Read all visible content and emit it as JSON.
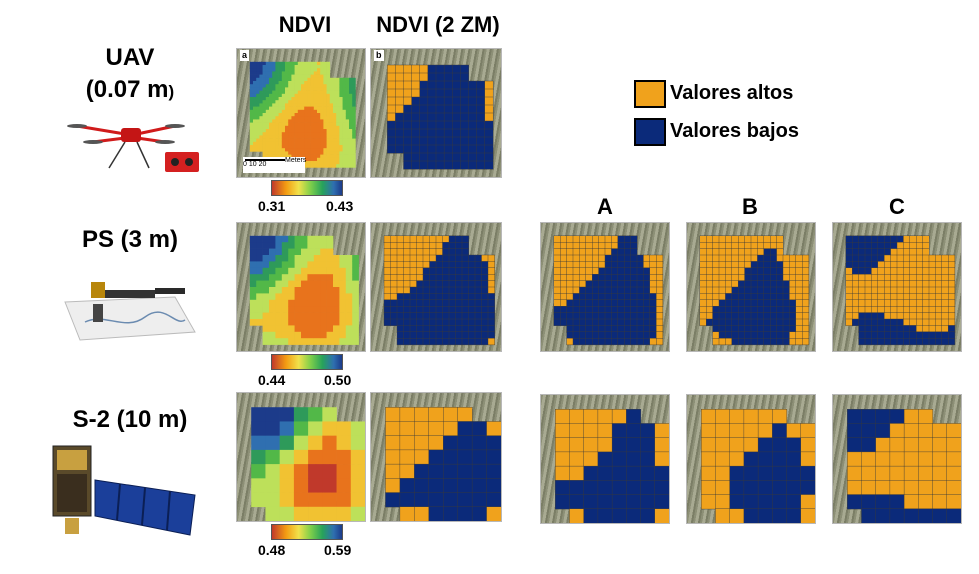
{
  "headers": {
    "ndvi": "NDVI",
    "ndvi_zm": "NDVI (2 ZM)",
    "a": "A",
    "b": "B",
    "c": "C"
  },
  "rows": {
    "uav": {
      "line1": "UAV",
      "line2": "(0.07 m",
      "line2b": ")",
      "sensor_icon": "drone-icon"
    },
    "ps": {
      "label": "PS (3 m)",
      "sensor_icon": "planetscope-satellite-icon"
    },
    "s2": {
      "label": "S-2 (10 m)",
      "sensor_icon": "sentinel-2-satellite-icon"
    }
  },
  "colorbars": {
    "uav": {
      "min": "0.31",
      "max": "0.43"
    },
    "ps": {
      "min": "0.44",
      "max": "0.50"
    },
    "s2": {
      "min": "0.48",
      "max": "0.59"
    }
  },
  "legend": {
    "high": {
      "label": "Valores altos",
      "color": "#f0a21c"
    },
    "low": {
      "label": "Valores bajos",
      "color": "#0b2a7a"
    }
  },
  "panel_letters": {
    "a": "a",
    "b": "b"
  },
  "scale_bar": {
    "unit": "Meters",
    "ticks": [
      "0",
      "10",
      "20"
    ]
  }
}
